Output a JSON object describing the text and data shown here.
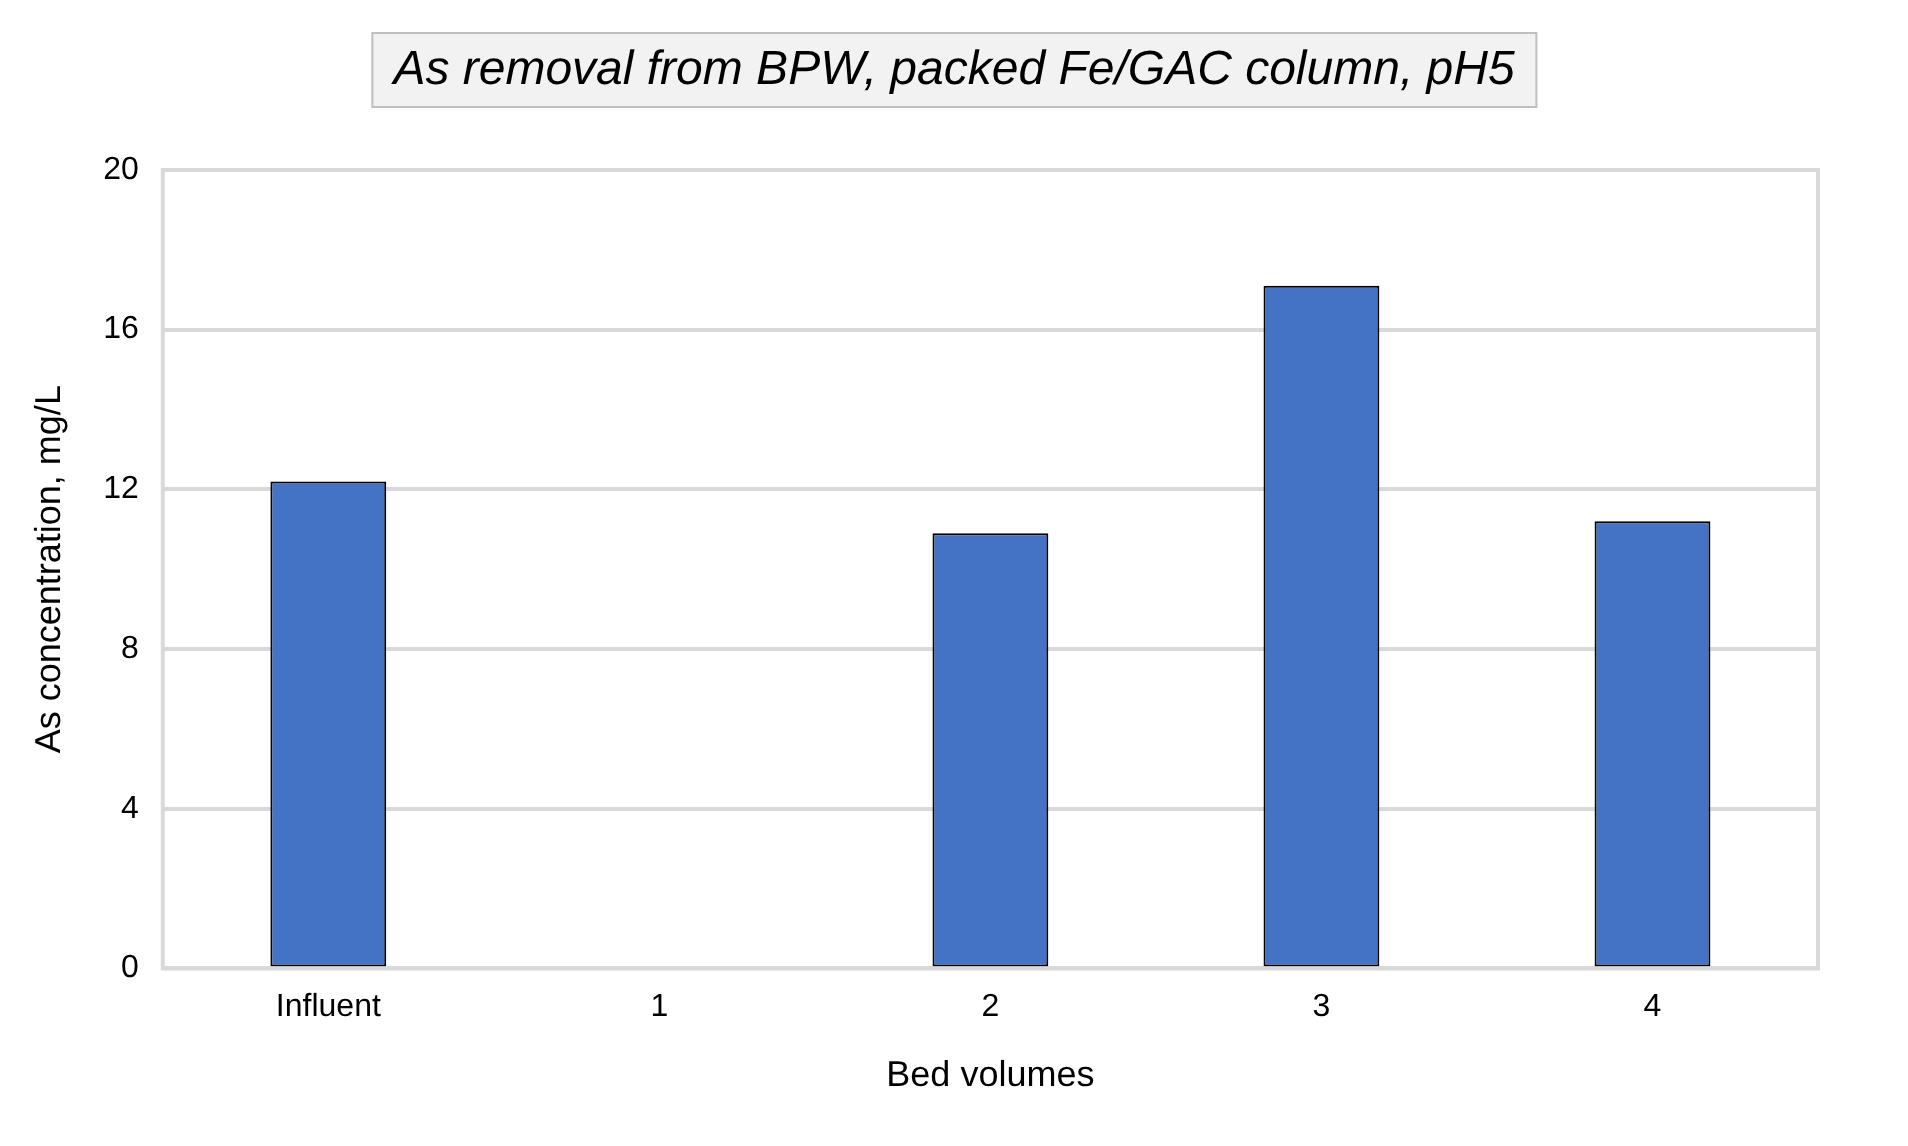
{
  "chart_data": {
    "type": "bar",
    "title": "As removal from BPW, packed Fe/GAC column, pH5",
    "xlabel": "Bed volumes",
    "ylabel": "As concentration, mg/L",
    "categories": [
      "Influent",
      "1",
      "2",
      "3",
      "4"
    ],
    "values": [
      12.2,
      null,
      10.9,
      17.1,
      11.2
    ],
    "color": "#4472c4",
    "ylim": [
      0,
      20
    ],
    "yticks": [
      0,
      4,
      8,
      12,
      16,
      20
    ],
    "grid": "y",
    "legend": false
  }
}
